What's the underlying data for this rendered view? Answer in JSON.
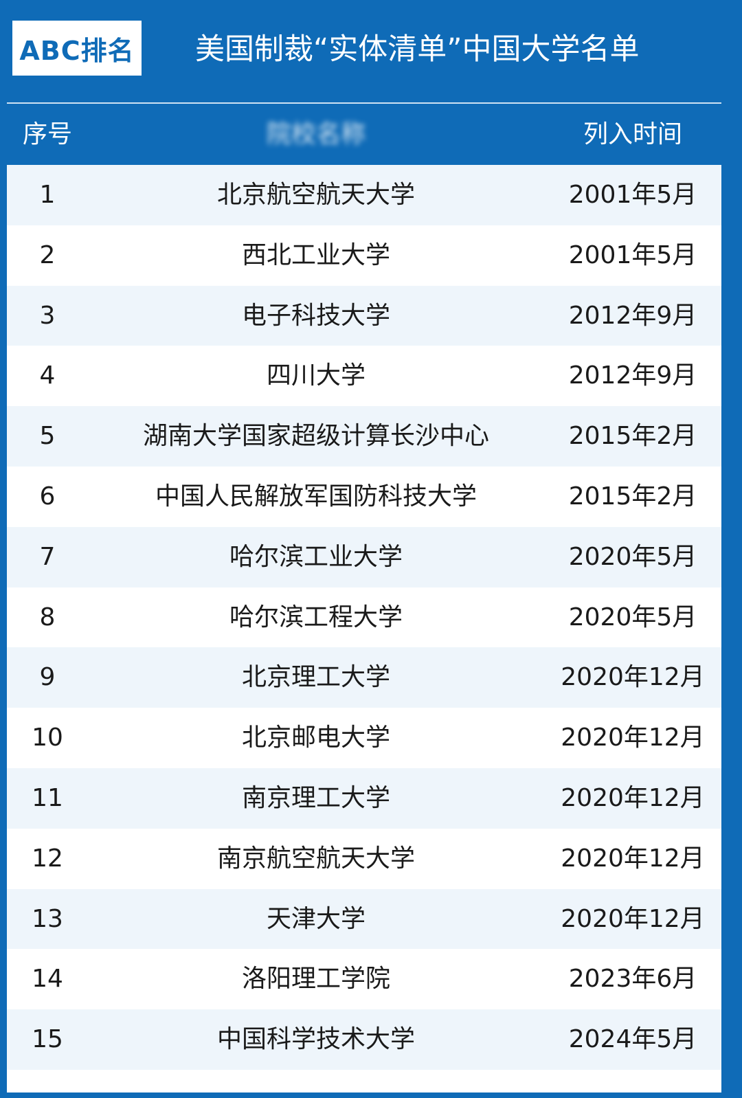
{
  "badge": {
    "text": "ABC排名"
  },
  "title": "美国制裁“实体清单”中国大学名单",
  "table": {
    "headers": {
      "index": "序号",
      "name": "院校名称",
      "date": "列入时间"
    },
    "rows": [
      {
        "index": "1",
        "name": "北京航空航天大学",
        "date": "2001年5月"
      },
      {
        "index": "2",
        "name": "西北工业大学",
        "date": "2001年5月"
      },
      {
        "index": "3",
        "name": "电子科技大学",
        "date": "2012年9月"
      },
      {
        "index": "4",
        "name": "四川大学",
        "date": "2012年9月"
      },
      {
        "index": "5",
        "name": "湖南大学国家超级计算长沙中心",
        "date": "2015年2月"
      },
      {
        "index": "6",
        "name": "中国人民解放军国防科技大学",
        "date": "2015年2月"
      },
      {
        "index": "7",
        "name": "哈尔滨工业大学",
        "date": "2020年5月"
      },
      {
        "index": "8",
        "name": "哈尔滨工程大学",
        "date": "2020年5月"
      },
      {
        "index": "9",
        "name": "北京理工大学",
        "date": "2020年12月"
      },
      {
        "index": "10",
        "name": "北京邮电大学",
        "date": "2020年12月"
      },
      {
        "index": "11",
        "name": "南京理工大学",
        "date": "2020年12月"
      },
      {
        "index": "12",
        "name": "南京航空航天大学",
        "date": "2020年12月"
      },
      {
        "index": "13",
        "name": "天津大学",
        "date": "2020年12月"
      },
      {
        "index": "14",
        "name": "洛阳理工学院",
        "date": "2023年6月"
      },
      {
        "index": "15",
        "name": "中国科学技术大学",
        "date": "2024年5月"
      }
    ]
  },
  "colors": {
    "background": "#0f6bb7",
    "row_alt": "#eef5fb",
    "row": "#ffffff"
  }
}
